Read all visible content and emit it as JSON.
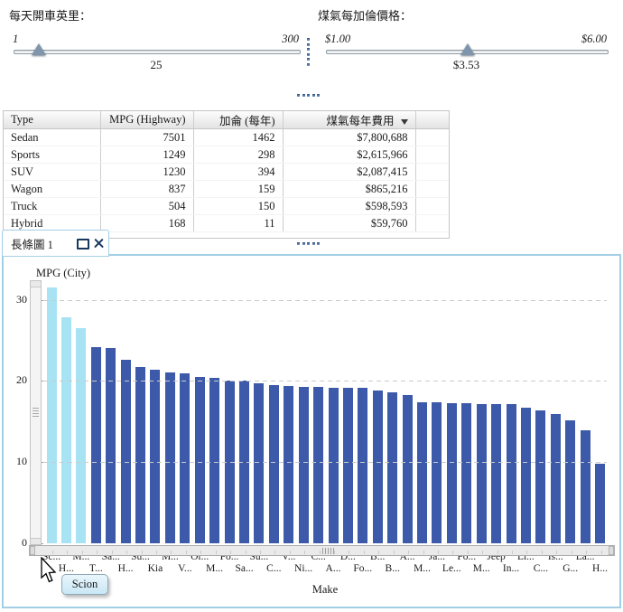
{
  "filters": {
    "daily_miles_slider": {
      "label": "每天開車英里",
      "min_label": "1",
      "max_label": "300",
      "value_label": "25",
      "min": 1,
      "max": 300,
      "value": 25
    },
    "gas_price_slider": {
      "label": "煤氣每加倫價格",
      "min_label": "$1.00",
      "max_label": "$6.00",
      "value_label": "$3.53",
      "min": 1.0,
      "max": 6.0,
      "value": 3.53
    }
  },
  "table": {
    "columns": [
      {
        "label": "Type",
        "align": "left"
      },
      {
        "label": "MPG (Highway)",
        "align": "right"
      },
      {
        "label": "加侖 (每年)",
        "align": "right"
      },
      {
        "label": "煤氣每年費用",
        "align": "right",
        "sorted": true
      },
      {
        "label": "",
        "align": "left"
      }
    ],
    "sort_indicator": "▼",
    "sort_direction": "descending",
    "rows": [
      [
        "Sedan",
        "7501",
        "1462",
        "$7,800,688"
      ],
      [
        "Sports",
        "1249",
        "298",
        "$2,615,966"
      ],
      [
        "SUV",
        "1230",
        "394",
        "$2,087,415"
      ],
      [
        "Wagon",
        "837",
        "159",
        "$865,216"
      ],
      [
        "Truck",
        "504",
        "150",
        "$598,593"
      ],
      [
        "Hybrid",
        "168",
        "11",
        "$59,760"
      ]
    ]
  },
  "chart_window": {
    "tab_title": "長條圖 1",
    "maximize_glyph": "□",
    "close_glyph": "✕"
  },
  "chart_data": {
    "type": "bar",
    "title": "MPG (City)",
    "ylabel": "MPG (City)",
    "xlabel": "Make",
    "ylim": [
      0,
      32.4
    ],
    "yticks": [
      0,
      10,
      20,
      30
    ],
    "grid": "horizontal-dashed",
    "legend": "none",
    "sort": "descending by value",
    "categories": [
      "Sc...",
      "H...",
      "M...",
      "T...",
      "Sa...",
      "H...",
      "Su...",
      "Kia",
      "M...",
      "V...",
      "Ol...",
      "M...",
      "Po...",
      "Sa...",
      "Su...",
      "C...",
      "V...",
      "Ni...",
      "C...",
      "A...",
      "D...",
      "Fo...",
      "B...",
      "B...",
      "A...",
      "M...",
      "Ja...",
      "Le...",
      "Po...",
      "M...",
      "Jeep",
      "In...",
      "Li...",
      "C...",
      "Is...",
      "G...",
      "La...",
      "H..."
    ],
    "values": [
      31.5,
      27.8,
      26.5,
      24.2,
      24.0,
      22.6,
      21.7,
      21.4,
      21.0,
      20.9,
      20.5,
      20.4,
      20.1,
      20.1,
      19.7,
      19.5,
      19.4,
      19.3,
      19.3,
      19.2,
      19.2,
      19.1,
      18.8,
      18.6,
      18.3,
      17.4,
      17.4,
      17.3,
      17.3,
      17.2,
      17.2,
      17.1,
      16.7,
      16.4,
      15.9,
      15.2,
      13.9,
      9.8
    ],
    "highlighted_bars": [
      0,
      1,
      2
    ],
    "highlighted_make": "Scion"
  },
  "tooltip": {
    "text": "Scion"
  },
  "colors": {
    "bar": "#3c5aa9",
    "bar_highlight": "#a8e3f3",
    "panel_border": "#a2cfe5",
    "icon_navy": "#17375e",
    "splitter_dot": "#36598c",
    "gridline": "#cbcbcb"
  }
}
